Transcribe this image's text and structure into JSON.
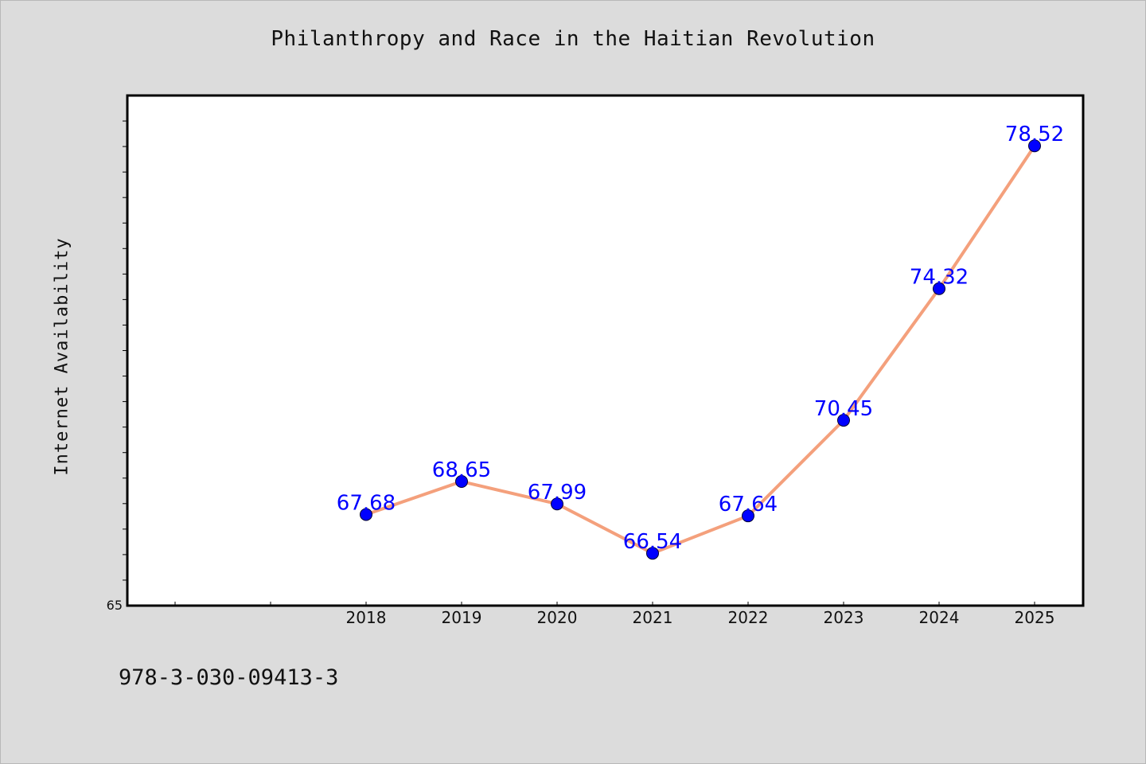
{
  "chart_data": {
    "type": "line",
    "title": "Philanthropy and Race in the Haitian Revolution",
    "xlabel": "",
    "ylabel": "Internet Availability",
    "categories": [
      "2018",
      "2019",
      "2020",
      "2021",
      "2022",
      "2023",
      "2024",
      "2025"
    ],
    "series": [
      {
        "values": [
          67.68,
          68.65,
          67.99,
          66.54,
          67.64,
          70.45,
          74.32,
          78.52
        ],
        "labels": [
          "67.68",
          "68.65",
          "67.99",
          "66.54",
          "67.64",
          "70.45",
          "74.32",
          "78.52"
        ]
      }
    ],
    "ylim": [
      65,
      80
    ],
    "ytick_label": "65",
    "grid": false,
    "legend": "none",
    "colors": {
      "line": "#f4a07c",
      "marker": "#0000ff",
      "data_label": "#0000ff",
      "plot_background": "#ffffff",
      "figure_background": "#dcdcdc"
    }
  },
  "footer": {
    "code": "978-3-030-09413-3"
  }
}
